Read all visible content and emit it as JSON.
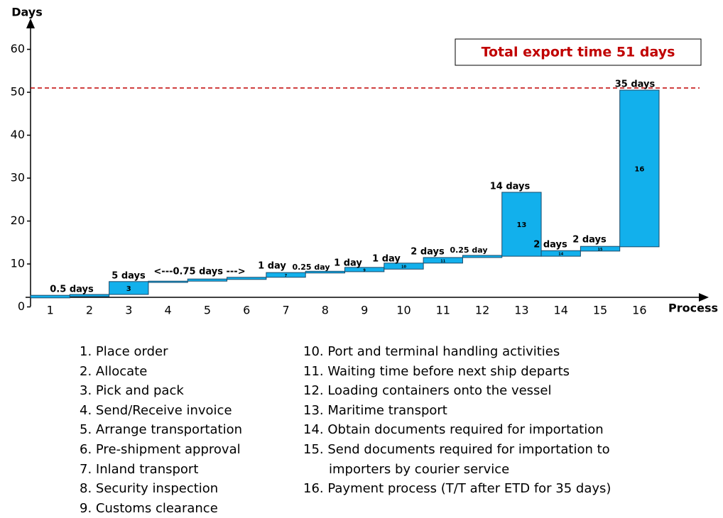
{
  "chart_data": {
    "type": "range_bar",
    "y_label": "Days",
    "x_label": "Process",
    "categories": [
      "1",
      "2",
      "3",
      "4",
      "5",
      "6",
      "7",
      "8",
      "9",
      "10",
      "11",
      "12",
      "13",
      "14",
      "15",
      "16"
    ],
    "low": [
      2.1,
      2.4,
      2.9,
      5.7,
      6.0,
      6.4,
      6.9,
      7.9,
      8.2,
      8.8,
      10.2,
      11.5,
      11.8,
      11.8,
      13.0,
      14.0
    ],
    "high": [
      2.7,
      2.9,
      5.9,
      6.0,
      6.5,
      6.9,
      8.0,
      8.3,
      9.2,
      10.2,
      11.5,
      12.0,
      26.7,
      13.1,
      14.1,
      50.5
    ],
    "bar_labels": [
      null,
      null,
      "3",
      null,
      null,
      null,
      "7",
      null,
      "9",
      "10",
      "11",
      null,
      "13",
      "14",
      "15",
      "16"
    ],
    "color": "#12b0ec",
    "ylim": [
      0,
      65
    ],
    "yticks": [
      0,
      10,
      20,
      30,
      40,
      50,
      60
    ],
    "annotations": [
      "0.5 days",
      "5 days",
      "<---0.75 days --->",
      "1 day",
      "0.25 day",
      "1 day",
      "1 day",
      "2 days",
      "0.25 day",
      "14 days",
      "2 days",
      "2 days",
      "35 days"
    ],
    "reference_line": {
      "value": 51,
      "label": "Total export time 51 days",
      "color": "#c00000"
    }
  },
  "steps": [
    [
      "1. Place order",
      "2. Allocate",
      "3. Pick and pack",
      "4. Send/Receive invoice",
      "5. Arrange transportation",
      "6. Pre-shipment approval",
      "7. Inland transport",
      "8. Security inspection",
      "9. Customs clearance"
    ],
    [
      "10. Port and terminal handling activities",
      "11. Waiting time before next ship departs",
      "12. Loading containers onto the vessel",
      "13. Maritime transport",
      "14. Obtain documents required for importation",
      "15. Send documents required for importation to importers by courier service",
      "16. Payment process (T/T after ETD for 35 days)"
    ]
  ]
}
